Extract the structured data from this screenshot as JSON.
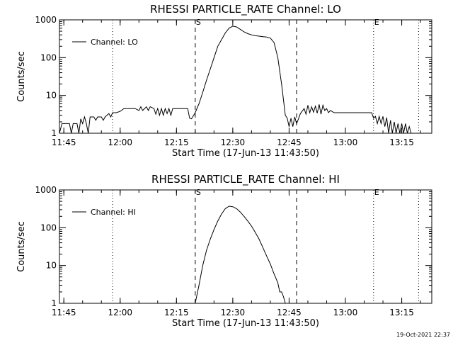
{
  "chart_data": [
    {
      "type": "line",
      "title": "RHESSI PARTICLE_RATE Channel: LO",
      "xlabel": "Start Time (17-Jun-13 11:43:50)",
      "ylabel": "Counts/sec",
      "y_scale": "log",
      "ylim": [
        1,
        1000
      ],
      "y_ticks": [
        "1",
        "10",
        "100",
        "1000"
      ],
      "xlim": [
        "11:43:50",
        "13:23:00"
      ],
      "x_ticks": [
        "11:45",
        "12:00",
        "12:15",
        "12:30",
        "12:45",
        "13:00",
        "13:15"
      ],
      "legend": "upper-left",
      "series": [
        {
          "name": "Channel: LO",
          "points": [
            [
              "11:43:50",
              1
            ],
            [
              "11:44:30",
              1.8
            ],
            [
              "11:45:30",
              1.8
            ],
            [
              "11:46:30",
              1.8
            ],
            [
              "11:47:00",
              1
            ],
            [
              "11:47:30",
              1.8
            ],
            [
              "11:48:30",
              1.8
            ],
            [
              "11:49:00",
              1
            ],
            [
              "11:49:30",
              2.4
            ],
            [
              "11:50:00",
              1.8
            ],
            [
              "11:50:30",
              2.7
            ],
            [
              "11:51:00",
              1.8
            ],
            [
              "11:51:30",
              1
            ],
            [
              "11:52:00",
              2.7
            ],
            [
              "11:53:00",
              2.7
            ],
            [
              "11:53:30",
              2.2
            ],
            [
              "11:54:00",
              2.7
            ],
            [
              "11:55:00",
              2.7
            ],
            [
              "11:55:30",
              2.2
            ],
            [
              "11:56:00",
              2.7
            ],
            [
              "11:57:00",
              3.3
            ],
            [
              "11:57:30",
              2.7
            ],
            [
              "11:58:00",
              3.5
            ],
            [
              "11:59:00",
              3.5
            ],
            [
              "12:00:00",
              3.8
            ],
            [
              "12:01:00",
              4.5
            ],
            [
              "12:02:00",
              4.5
            ],
            [
              "12:03:00",
              4.5
            ],
            [
              "12:04:00",
              4.5
            ],
            [
              "12:05:00",
              4
            ],
            [
              "12:05:30",
              5
            ],
            [
              "12:06:00",
              4
            ],
            [
              "12:07:00",
              5
            ],
            [
              "12:07:30",
              4
            ],
            [
              "12:08:00",
              5
            ],
            [
              "12:09:00",
              4.5
            ],
            [
              "12:09:30",
              3.2
            ],
            [
              "12:10:00",
              4.5
            ],
            [
              "12:10:30",
              3
            ],
            [
              "12:11:00",
              4.5
            ],
            [
              "12:11:30",
              3
            ],
            [
              "12:12:00",
              4.5
            ],
            [
              "12:12:30",
              3.3
            ],
            [
              "12:13:00",
              4.5
            ],
            [
              "12:13:30",
              3
            ],
            [
              "12:14:00",
              4.5
            ],
            [
              "12:15:00",
              4.5
            ],
            [
              "12:16:00",
              4.5
            ],
            [
              "12:17:00",
              4.5
            ],
            [
              "12:18:00",
              4.5
            ],
            [
              "12:18:30",
              2.5
            ],
            [
              "12:19:00",
              2.4
            ],
            [
              "12:20:00",
              3.5
            ],
            [
              "12:21:00",
              6
            ],
            [
              "12:22:00",
              12
            ],
            [
              "12:23:00",
              25
            ],
            [
              "12:24:00",
              50
            ],
            [
              "12:25:00",
              100
            ],
            [
              "12:26:00",
              200
            ],
            [
              "12:27:00",
              300
            ],
            [
              "12:28:00",
              450
            ],
            [
              "12:29:00",
              600
            ],
            [
              "12:30:00",
              680
            ],
            [
              "12:31:00",
              650
            ],
            [
              "12:32:00",
              560
            ],
            [
              "12:33:00",
              480
            ],
            [
              "12:34:00",
              430
            ],
            [
              "12:35:00",
              400
            ],
            [
              "12:36:00",
              380
            ],
            [
              "12:37:00",
              370
            ],
            [
              "12:38:00",
              360
            ],
            [
              "12:39:00",
              350
            ],
            [
              "12:40:00",
              330
            ],
            [
              "12:41:00",
              250
            ],
            [
              "12:42:00",
              100
            ],
            [
              "12:43:00",
              20
            ],
            [
              "12:44:00",
              3
            ],
            [
              "12:44:30",
              2.5
            ],
            [
              "12:45:00",
              1.5
            ],
            [
              "12:45:30",
              2.5
            ],
            [
              "12:46:00",
              1.5
            ],
            [
              "12:46:30",
              2.7
            ],
            [
              "12:47:00",
              1.8
            ],
            [
              "12:47:30",
              2.4
            ],
            [
              "12:48:00",
              3.3
            ],
            [
              "12:49:00",
              4.5
            ],
            [
              "12:49:30",
              3.2
            ],
            [
              "12:50:00",
              5.5
            ],
            [
              "12:50:30",
              3.5
            ],
            [
              "12:51:00",
              5
            ],
            [
              "12:51:30",
              3.6
            ],
            [
              "12:52:00",
              5.2
            ],
            [
              "12:52:30",
              3.4
            ],
            [
              "12:53:00",
              5.8
            ],
            [
              "12:53:30",
              3.2
            ],
            [
              "12:54:00",
              5.5
            ],
            [
              "12:54:30",
              4
            ],
            [
              "12:55:00",
              4.5
            ],
            [
              "12:55:30",
              3.5
            ],
            [
              "12:56:00",
              4
            ],
            [
              "12:57:00",
              3.5
            ],
            [
              "12:58:00",
              3.5
            ],
            [
              "12:59:00",
              3.5
            ],
            [
              "13:00:00",
              3.5
            ],
            [
              "13:01:00",
              3.5
            ],
            [
              "13:02:00",
              3.5
            ],
            [
              "13:03:00",
              3.5
            ],
            [
              "13:04:00",
              3.5
            ],
            [
              "13:05:00",
              3.5
            ],
            [
              "13:06:00",
              3.5
            ],
            [
              "13:07:00",
              3.5
            ],
            [
              "13:07:30",
              2.5
            ],
            [
              "13:08:00",
              2.8
            ],
            [
              "13:08:30",
              1.8
            ],
            [
              "13:09:00",
              2.8
            ],
            [
              "13:09:30",
              1.8
            ],
            [
              "13:10:00",
              2.8
            ],
            [
              "13:10:30",
              1.5
            ],
            [
              "13:11:00",
              2.6
            ],
            [
              "13:11:30",
              1
            ],
            [
              "13:12:00",
              2.2
            ],
            [
              "13:12:30",
              1
            ],
            [
              "13:13:00",
              2
            ],
            [
              "13:13:30",
              1
            ],
            [
              "13:14:00",
              1.8
            ],
            [
              "13:14:30",
              1
            ],
            [
              "13:15:00",
              1.8
            ],
            [
              "13:15:30",
              1
            ],
            [
              "13:16:00",
              1.8
            ],
            [
              "13:16:30",
              1
            ],
            [
              "13:17:00",
              1.5
            ],
            [
              "13:17:30",
              1
            ],
            [
              "13:18:00",
              1
            ]
          ]
        }
      ],
      "markers": [
        {
          "label": "",
          "time": "11:43:50",
          "style": "dotted"
        },
        {
          "label": "",
          "time": "11:58:00",
          "style": "dotted"
        },
        {
          "label": "S",
          "time": "12:20:00",
          "style": "dashed"
        },
        {
          "label": "",
          "time": "12:47:00",
          "style": "dashed"
        },
        {
          "label": "E",
          "time": "13:07:30",
          "style": "dotted"
        },
        {
          "label": "",
          "time": "13:19:30",
          "style": "dotted"
        }
      ]
    },
    {
      "type": "line",
      "title": "RHESSI PARTICLE_RATE Channel: HI",
      "xlabel": "Start Time (17-Jun-13 11:43:50)",
      "ylabel": "Counts/sec",
      "y_scale": "log",
      "ylim": [
        1,
        1000
      ],
      "y_ticks": [
        "1",
        "10",
        "100",
        "1000"
      ],
      "xlim": [
        "11:43:50",
        "13:23:00"
      ],
      "x_ticks": [
        "11:45",
        "12:00",
        "12:15",
        "12:30",
        "12:45",
        "13:00",
        "13:15"
      ],
      "legend": "upper-left",
      "series": [
        {
          "name": "Channel: HI",
          "points": [
            [
              "12:20:00",
              1
            ],
            [
              "12:21:00",
              3
            ],
            [
              "12:22:00",
              10
            ],
            [
              "12:23:00",
              25
            ],
            [
              "12:24:00",
              50
            ],
            [
              "12:25:00",
              90
            ],
            [
              "12:26:00",
              150
            ],
            [
              "12:27:00",
              230
            ],
            [
              "12:28:00",
              320
            ],
            [
              "12:29:00",
              370
            ],
            [
              "12:30:00",
              360
            ],
            [
              "12:31:00",
              320
            ],
            [
              "12:32:00",
              260
            ],
            [
              "12:33:00",
              200
            ],
            [
              "12:34:00",
              150
            ],
            [
              "12:35:00",
              110
            ],
            [
              "12:36:00",
              75
            ],
            [
              "12:37:00",
              50
            ],
            [
              "12:38:00",
              30
            ],
            [
              "12:39:00",
              18
            ],
            [
              "12:40:00",
              11
            ],
            [
              "12:41:00",
              6
            ],
            [
              "12:42:00",
              3.5
            ],
            [
              "12:42:30",
              2
            ],
            [
              "12:43:00",
              2
            ],
            [
              "12:43:30",
              1.5
            ],
            [
              "12:44:00",
              1
            ]
          ]
        }
      ],
      "markers": [
        {
          "label": "",
          "time": "11:43:50",
          "style": "dotted"
        },
        {
          "label": "",
          "time": "11:58:00",
          "style": "dotted"
        },
        {
          "label": "S",
          "time": "12:20:00",
          "style": "dashed"
        },
        {
          "label": "",
          "time": "12:47:00",
          "style": "dashed"
        },
        {
          "label": "E",
          "time": "13:07:30",
          "style": "dotted"
        },
        {
          "label": "",
          "time": "13:19:30",
          "style": "dotted"
        }
      ]
    }
  ],
  "footer": {
    "timestamp": "19-Oct-2021 22:37"
  }
}
